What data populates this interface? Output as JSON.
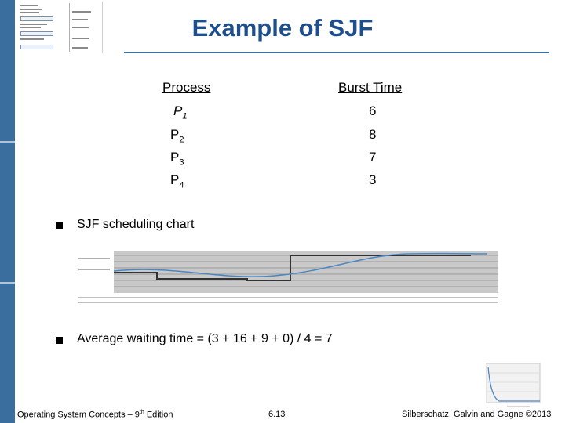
{
  "title": "Example of SJF",
  "table": {
    "headers": {
      "process": "Process",
      "burst": "Burst Time"
    },
    "rows": [
      {
        "name": "P",
        "sub": "1",
        "burst": "6"
      },
      {
        "name": "P",
        "sub": "2",
        "burst": "8"
      },
      {
        "name": "P",
        "sub": "3",
        "burst": "7"
      },
      {
        "name": "P",
        "sub": "4",
        "burst": "3"
      }
    ]
  },
  "bullets": {
    "chart": "SJF scheduling chart",
    "average": "Average waiting time = (3 + 16 + 9 + 0) / 4 = 7"
  },
  "footer": {
    "left": "Operating System Concepts – 9",
    "left_sup": "th",
    "left_end": " Edition",
    "center": "6.13",
    "right": "Silberschatz, Galvin and Gagne ©2013"
  },
  "colors": {
    "accent": "#3a6e9e",
    "title": "#1f4e8c"
  }
}
